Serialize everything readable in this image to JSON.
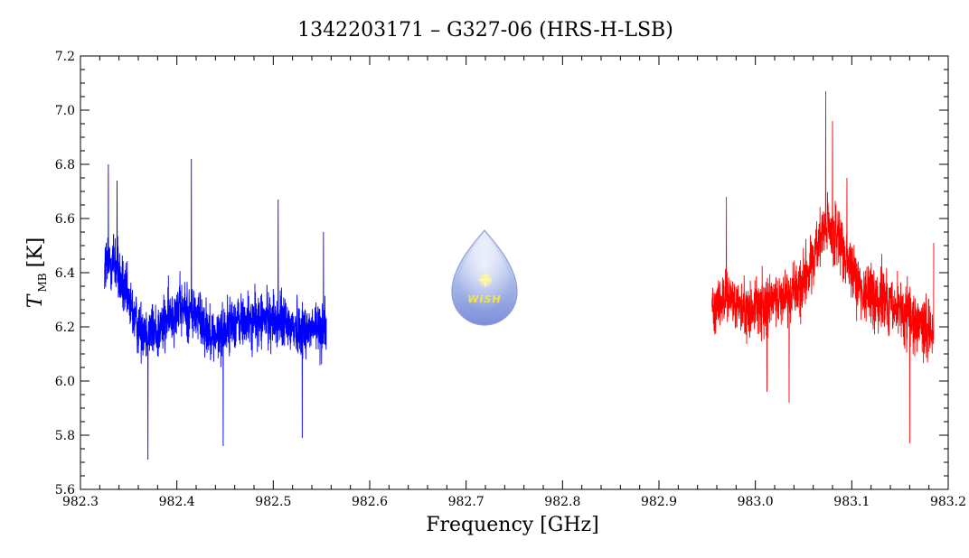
{
  "chart_data": {
    "type": "line",
    "title": "1342203171 – G327-06 (HRS-H-LSB)",
    "xlabel": "Frequency [GHz]",
    "ylabel": {
      "symbol": "T",
      "subscript": "MB",
      "unit": "[K]"
    },
    "xlim": [
      982.3,
      983.2
    ],
    "ylim": [
      5.6,
      7.2
    ],
    "x_ticks": [
      982.3,
      982.4,
      982.5,
      982.6,
      982.7,
      982.8,
      982.9,
      983.0,
      983.1,
      983.2
    ],
    "x_tick_labels": [
      "982.3",
      "982.4",
      "982.5",
      "982.6",
      "982.7",
      "982.8",
      "982.9",
      "983.0",
      "983.1",
      "983.2"
    ],
    "y_ticks": [
      5.6,
      5.8,
      6.0,
      6.2,
      6.4,
      6.6,
      6.8,
      7.0,
      7.2
    ],
    "y_tick_labels": [
      "5.6",
      "5.8",
      "6.0",
      "6.2",
      "6.4",
      "6.6",
      "6.8",
      "7.0",
      "7.2"
    ],
    "grid": false,
    "series": [
      {
        "color": "#0000ff",
        "x_range": [
          982.325,
          982.555
        ],
        "envelope": [
          {
            "x": 982.325,
            "y": 6.42,
            "spread": 0.28
          },
          {
            "x": 982.335,
            "y": 6.45,
            "spread": 0.3
          },
          {
            "x": 982.345,
            "y": 6.33,
            "spread": 0.25
          },
          {
            "x": 982.36,
            "y": 6.2,
            "spread": 0.24
          },
          {
            "x": 982.38,
            "y": 6.18,
            "spread": 0.25
          },
          {
            "x": 982.4,
            "y": 6.27,
            "spread": 0.24
          },
          {
            "x": 982.42,
            "y": 6.25,
            "spread": 0.25
          },
          {
            "x": 982.44,
            "y": 6.16,
            "spread": 0.22
          },
          {
            "x": 982.46,
            "y": 6.22,
            "spread": 0.24
          },
          {
            "x": 982.48,
            "y": 6.22,
            "spread": 0.24
          },
          {
            "x": 982.5,
            "y": 6.23,
            "spread": 0.24
          },
          {
            "x": 982.52,
            "y": 6.2,
            "spread": 0.25
          },
          {
            "x": 982.54,
            "y": 6.19,
            "spread": 0.24
          },
          {
            "x": 982.555,
            "y": 6.2,
            "spread": 0.25
          }
        ],
        "extremes": [
          {
            "x": 982.329,
            "y": 6.8
          },
          {
            "x": 982.338,
            "y": 6.74
          },
          {
            "x": 982.37,
            "y": 5.71
          },
          {
            "x": 982.415,
            "y": 6.82
          },
          {
            "x": 982.448,
            "y": 5.76
          },
          {
            "x": 982.505,
            "y": 6.67
          },
          {
            "x": 982.53,
            "y": 5.79
          },
          {
            "x": 982.552,
            "y": 6.55
          }
        ]
      },
      {
        "color": "#ff0000",
        "x_range": [
          982.955,
          983.185
        ],
        "envelope": [
          {
            "x": 982.955,
            "y": 6.28,
            "spread": 0.22
          },
          {
            "x": 982.97,
            "y": 6.3,
            "spread": 0.24
          },
          {
            "x": 982.99,
            "y": 6.26,
            "spread": 0.25
          },
          {
            "x": 983.01,
            "y": 6.28,
            "spread": 0.25
          },
          {
            "x": 983.03,
            "y": 6.32,
            "spread": 0.24
          },
          {
            "x": 983.05,
            "y": 6.36,
            "spread": 0.25
          },
          {
            "x": 983.065,
            "y": 6.5,
            "spread": 0.28
          },
          {
            "x": 983.075,
            "y": 6.58,
            "spread": 0.3
          },
          {
            "x": 983.09,
            "y": 6.48,
            "spread": 0.27
          },
          {
            "x": 983.11,
            "y": 6.34,
            "spread": 0.25
          },
          {
            "x": 983.13,
            "y": 6.3,
            "spread": 0.26
          },
          {
            "x": 983.15,
            "y": 6.26,
            "spread": 0.25
          },
          {
            "x": 983.17,
            "y": 6.2,
            "spread": 0.26
          },
          {
            "x": 983.185,
            "y": 6.18,
            "spread": 0.26
          }
        ],
        "extremes": [
          {
            "x": 982.97,
            "y": 6.68
          },
          {
            "x": 983.012,
            "y": 5.96
          },
          {
            "x": 983.035,
            "y": 5.92
          },
          {
            "x": 983.073,
            "y": 7.07
          },
          {
            "x": 983.08,
            "y": 6.96
          },
          {
            "x": 983.095,
            "y": 6.75
          },
          {
            "x": 983.16,
            "y": 5.77
          },
          {
            "x": 983.185,
            "y": 6.51
          }
        ]
      }
    ]
  },
  "logo": {
    "text": "WISH",
    "colors": {
      "drop_top": "#e8eefc",
      "drop_bottom": "#7d8fd8",
      "text": "#f2e34a",
      "star": "#fff6a0"
    }
  }
}
